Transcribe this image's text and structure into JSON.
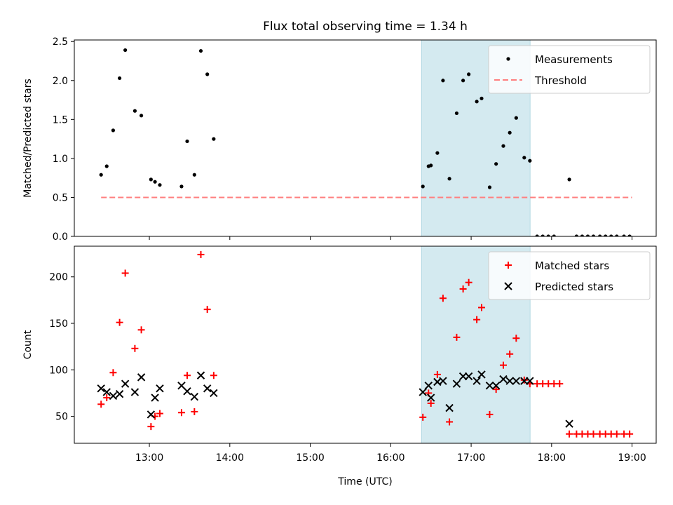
{
  "chart_data": {
    "title": "Flux total observing time = 1.34 h",
    "x_tick_labels": [
      "13:00",
      "14:00",
      "15:00",
      "16:00",
      "17:00",
      "18:00",
      "19:00"
    ],
    "x_tick_hours": [
      13,
      14,
      15,
      16,
      17,
      18,
      19
    ],
    "xlabel": "Time (UTC)",
    "xlim_hours": [
      12.067,
      19.3
    ],
    "highlight_span_hours": [
      16.383,
      17.733
    ],
    "highlight_color": "#d4eaf0",
    "panels": [
      {
        "type": "scatter",
        "ylabel": "Matched/Predicted stars",
        "ylim": [
          0.0,
          2.52
        ],
        "yticks": [
          0.0,
          0.5,
          1.0,
          1.5,
          2.0,
          2.5
        ],
        "ytick_labels": [
          "0.0",
          "0.5",
          "1.0",
          "1.5",
          "2.0",
          "2.5"
        ],
        "legend": {
          "placement": "upper right",
          "entries": [
            "Measurements",
            "Threshold"
          ]
        },
        "threshold": {
          "name": "Threshold",
          "value": 0.5,
          "x_range": [
            12.4,
            19.0
          ],
          "color": "#ff7f7f",
          "style": "dashed"
        },
        "series": [
          {
            "name": "Measurements",
            "color": "#000000",
            "marker": "dot",
            "points": [
              [
                12.4,
                0.79
              ],
              [
                12.47,
                0.9
              ],
              [
                12.55,
                1.36
              ],
              [
                12.63,
                2.03
              ],
              [
                12.7,
                2.39
              ],
              [
                12.82,
                1.61
              ],
              [
                12.9,
                1.55
              ],
              [
                13.02,
                0.73
              ],
              [
                13.07,
                0.7
              ],
              [
                13.13,
                0.66
              ],
              [
                13.4,
                0.64
              ],
              [
                13.47,
                1.22
              ],
              [
                13.56,
                0.79
              ],
              [
                13.64,
                2.38
              ],
              [
                13.72,
                2.08
              ],
              [
                13.8,
                1.25
              ],
              [
                16.4,
                0.64
              ],
              [
                16.47,
                0.9
              ],
              [
                16.5,
                0.91
              ],
              [
                16.58,
                1.07
              ],
              [
                16.65,
                2.0
              ],
              [
                16.73,
                0.74
              ],
              [
                16.82,
                1.58
              ],
              [
                16.9,
                2.0
              ],
              [
                16.97,
                2.08
              ],
              [
                17.07,
                1.73
              ],
              [
                17.13,
                1.77
              ],
              [
                17.23,
                0.63
              ],
              [
                17.31,
                0.93
              ],
              [
                17.4,
                1.16
              ],
              [
                17.48,
                1.33
              ],
              [
                17.56,
                1.52
              ],
              [
                17.66,
                1.01
              ],
              [
                17.73,
                0.97
              ],
              [
                17.82,
                0.0
              ],
              [
                17.89,
                0.0
              ],
              [
                17.96,
                0.0
              ],
              [
                18.03,
                0.0
              ],
              [
                18.22,
                0.73
              ],
              [
                18.31,
                0.0
              ],
              [
                18.38,
                0.0
              ],
              [
                18.45,
                0.0
              ],
              [
                18.52,
                0.0
              ],
              [
                18.6,
                0.0
              ],
              [
                18.67,
                0.0
              ],
              [
                18.74,
                0.0
              ],
              [
                18.81,
                0.0
              ],
              [
                18.9,
                0.0
              ],
              [
                18.97,
                0.0
              ]
            ]
          }
        ]
      },
      {
        "type": "scatter",
        "ylabel": "Count",
        "ylim": [
          21,
          233
        ],
        "yticks": [
          50,
          100,
          150,
          200
        ],
        "ytick_labels": [
          "50",
          "100",
          "150",
          "200"
        ],
        "legend": {
          "placement": "upper right",
          "entries": [
            "Matched stars",
            "Predicted stars"
          ]
        },
        "series": [
          {
            "name": "Matched stars",
            "color": "#ff0000",
            "marker": "plus",
            "points": [
              [
                12.4,
                63
              ],
              [
                12.47,
                70
              ],
              [
                12.55,
                97
              ],
              [
                12.63,
                151
              ],
              [
                12.7,
                204
              ],
              [
                12.82,
                123
              ],
              [
                12.9,
                143
              ],
              [
                13.02,
                39
              ],
              [
                13.07,
                50
              ],
              [
                13.13,
                53
              ],
              [
                13.4,
                54
              ],
              [
                13.47,
                94
              ],
              [
                13.56,
                55
              ],
              [
                13.64,
                224
              ],
              [
                13.72,
                165
              ],
              [
                13.8,
                94
              ],
              [
                16.4,
                49
              ],
              [
                16.47,
                75
              ],
              [
                16.5,
                64
              ],
              [
                16.58,
                95
              ],
              [
                16.65,
                177
              ],
              [
                16.73,
                44
              ],
              [
                16.82,
                135
              ],
              [
                16.9,
                187
              ],
              [
                16.97,
                194
              ],
              [
                17.07,
                154
              ],
              [
                17.13,
                167
              ],
              [
                17.23,
                52
              ],
              [
                17.31,
                79
              ],
              [
                17.4,
                105
              ],
              [
                17.48,
                117
              ],
              [
                17.56,
                134
              ],
              [
                17.66,
                89
              ],
              [
                17.73,
                85
              ],
              [
                17.82,
                85
              ],
              [
                17.89,
                85
              ],
              [
                17.96,
                85
              ],
              [
                18.03,
                85
              ],
              [
                18.1,
                85
              ],
              [
                18.22,
                31
              ],
              [
                18.31,
                31
              ],
              [
                18.38,
                31
              ],
              [
                18.45,
                31
              ],
              [
                18.52,
                31
              ],
              [
                18.6,
                31
              ],
              [
                18.67,
                31
              ],
              [
                18.74,
                31
              ],
              [
                18.81,
                31
              ],
              [
                18.9,
                31
              ],
              [
                18.97,
                31
              ]
            ]
          },
          {
            "name": "Predicted stars",
            "color": "#000000",
            "marker": "x",
            "points": [
              [
                12.4,
                80
              ],
              [
                12.47,
                76
              ],
              [
                12.55,
                72
              ],
              [
                12.63,
                74
              ],
              [
                12.7,
                85
              ],
              [
                12.82,
                76
              ],
              [
                12.9,
                92
              ],
              [
                13.02,
                52
              ],
              [
                13.07,
                70
              ],
              [
                13.13,
                80
              ],
              [
                13.4,
                83
              ],
              [
                13.47,
                77
              ],
              [
                13.56,
                71
              ],
              [
                13.64,
                94
              ],
              [
                13.72,
                80
              ],
              [
                13.8,
                75
              ],
              [
                16.4,
                76
              ],
              [
                16.47,
                83
              ],
              [
                16.5,
                70
              ],
              [
                16.58,
                87
              ],
              [
                16.65,
                88
              ],
              [
                16.73,
                59
              ],
              [
                16.82,
                85
              ],
              [
                16.9,
                93
              ],
              [
                16.97,
                93
              ],
              [
                17.07,
                88
              ],
              [
                17.13,
                95
              ],
              [
                17.23,
                83
              ],
              [
                17.31,
                83
              ],
              [
                17.4,
                90
              ],
              [
                17.48,
                88
              ],
              [
                17.56,
                88
              ],
              [
                17.66,
                88
              ],
              [
                17.73,
                88
              ],
              [
                18.22,
                42
              ]
            ]
          }
        ]
      }
    ]
  }
}
